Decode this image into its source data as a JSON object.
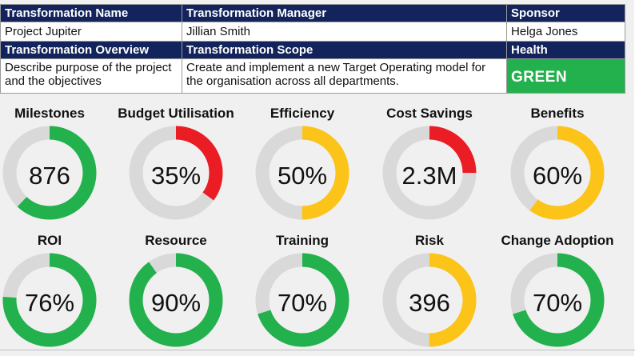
{
  "info": {
    "headers1": [
      "Transformation Name",
      "Transformation Manager",
      "Sponsor"
    ],
    "row1": [
      "Project Jupiter",
      "Jillian Smith",
      "Helga Jones"
    ],
    "headers2": [
      "Transformation Overview",
      "Transformation Scope",
      "Health"
    ],
    "row2": {
      "overview": "Describe purpose of the project and the objectives",
      "scope": "Create and implement a new Target Operating model for the organisation across all departments.",
      "health": "GREEN"
    }
  },
  "colors": {
    "header_bg": "#13245c",
    "green": "#22b14c",
    "red": "#ea1c24",
    "yellow": "#fcc419",
    "track": "#d9d9d9"
  },
  "gauges": [
    {
      "title": "Milestones",
      "value": "876",
      "fill": 0.62,
      "color": "green"
    },
    {
      "title": "Budget Utilisation",
      "value": "35%",
      "fill": 0.35,
      "color": "red"
    },
    {
      "title": "Efficiency",
      "value": "50%",
      "fill": 0.5,
      "color": "yellow"
    },
    {
      "title": "Cost Savings",
      "value": "2.3M",
      "fill": 0.25,
      "color": "red"
    },
    {
      "title": "Benefits",
      "value": "60%",
      "fill": 0.6,
      "color": "yellow"
    },
    {
      "title": "ROI",
      "value": "76%",
      "fill": 0.76,
      "color": "green"
    },
    {
      "title": "Resource",
      "value": "90%",
      "fill": 0.9,
      "color": "green"
    },
    {
      "title": "Training",
      "value": "70%",
      "fill": 0.7,
      "color": "green"
    },
    {
      "title": "Risk",
      "value": "396",
      "fill": 0.5,
      "color": "yellow"
    },
    {
      "title": "Change Adoption",
      "value": "70%",
      "fill": 0.7,
      "color": "green"
    }
  ]
}
